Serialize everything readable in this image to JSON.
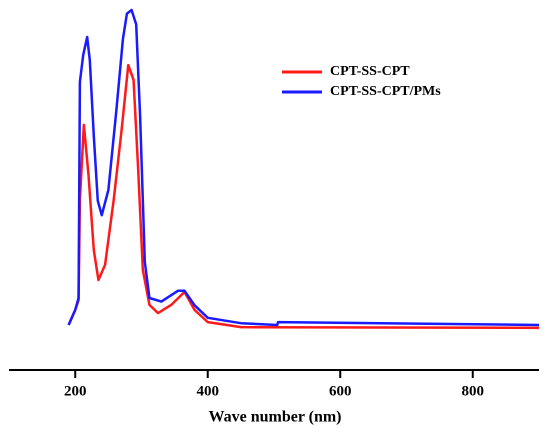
{
  "chart_data": {
    "type": "line",
    "xlabel": "Wave number (nm)",
    "xlim": [
      100,
      900
    ],
    "xticks": [
      200,
      400,
      600,
      800
    ],
    "ylim": [
      0,
      1
    ],
    "legend": "upper right",
    "series": [
      {
        "name": "CPT-SS-CPT",
        "color": "#ff1a1a",
        "x": [
          190,
          200,
          205,
          207,
          213,
          220,
          228,
          235,
          245,
          258,
          270,
          280,
          288,
          295,
          302,
          312,
          325,
          345,
          365,
          380,
          400,
          450,
          900
        ],
        "values": [
          0.125,
          0.167,
          0.194,
          0.472,
          0.681,
          0.542,
          0.333,
          0.25,
          0.292,
          0.472,
          0.667,
          0.847,
          0.806,
          0.556,
          0.278,
          0.181,
          0.158,
          0.181,
          0.217,
          0.167,
          0.133,
          0.119,
          0.117
        ]
      },
      {
        "name": "CPT-SS-CPT/PMs",
        "color": "#1a1aff",
        "x": [
          190,
          200,
          205,
          207,
          212,
          218,
          222,
          228,
          234,
          240,
          250,
          262,
          272,
          278,
          285,
          292,
          298,
          305,
          312,
          330,
          355,
          365,
          380,
          400,
          450,
          505,
          506,
          900
        ],
        "values": [
          0.125,
          0.167,
          0.2,
          0.8,
          0.875,
          0.925,
          0.86,
          0.65,
          0.47,
          0.43,
          0.5,
          0.72,
          0.92,
          0.99,
          1.0,
          0.96,
          0.7,
          0.3,
          0.2,
          0.19,
          0.22,
          0.22,
          0.18,
          0.145,
          0.13,
          0.125,
          0.133,
          0.125
        ]
      }
    ]
  }
}
